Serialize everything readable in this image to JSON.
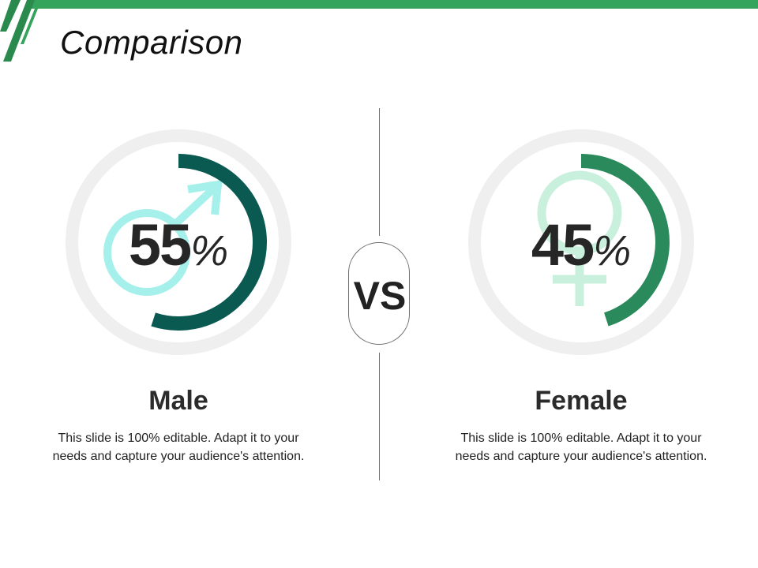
{
  "title": "Comparison",
  "vs_label": "VS",
  "percent_symbol": "%",
  "colors": {
    "accent_green": "#34a35b",
    "male_ring": "#0b5a52",
    "male_icon": "#a6f0ec",
    "female_ring": "#2a8a5c",
    "female_icon": "#c9f0dd",
    "track": "#efefef"
  },
  "chart_data": [
    {
      "type": "pie",
      "categories": [
        "Male"
      ],
      "values": [
        55
      ],
      "value_label": "55",
      "icon": "male-symbol-icon",
      "description": "This slide is 100% editable. Adapt it to your needs and capture your audience's attention."
    },
    {
      "type": "pie",
      "categories": [
        "Female"
      ],
      "values": [
        45
      ],
      "value_label": "45",
      "icon": "female-symbol-icon",
      "description": "This slide is 100% editable. Adapt it to your needs and capture your audience's attention."
    }
  ]
}
